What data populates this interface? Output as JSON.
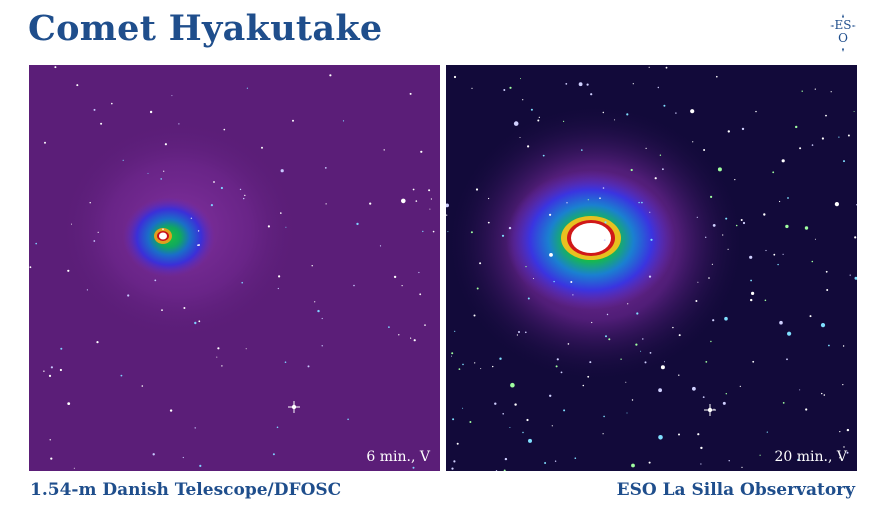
{
  "title": "Comet Hyakutake",
  "logo": {
    "lines": [
      "ES",
      "O"
    ],
    "icon": "eso-star-logo-icon",
    "color": "#1f4e8c"
  },
  "panels": [
    {
      "exposure": "6 min., V",
      "background": "#5b1e78",
      "coma": "small"
    },
    {
      "exposure": "20 min., V",
      "background": "#120a3a",
      "coma": "large"
    }
  ],
  "captions": {
    "left": "1.54-m Danish Telescope/DFOSC",
    "right": "ESO La Silla Observatory"
  },
  "colors": {
    "text": "#1f4e8c"
  }
}
